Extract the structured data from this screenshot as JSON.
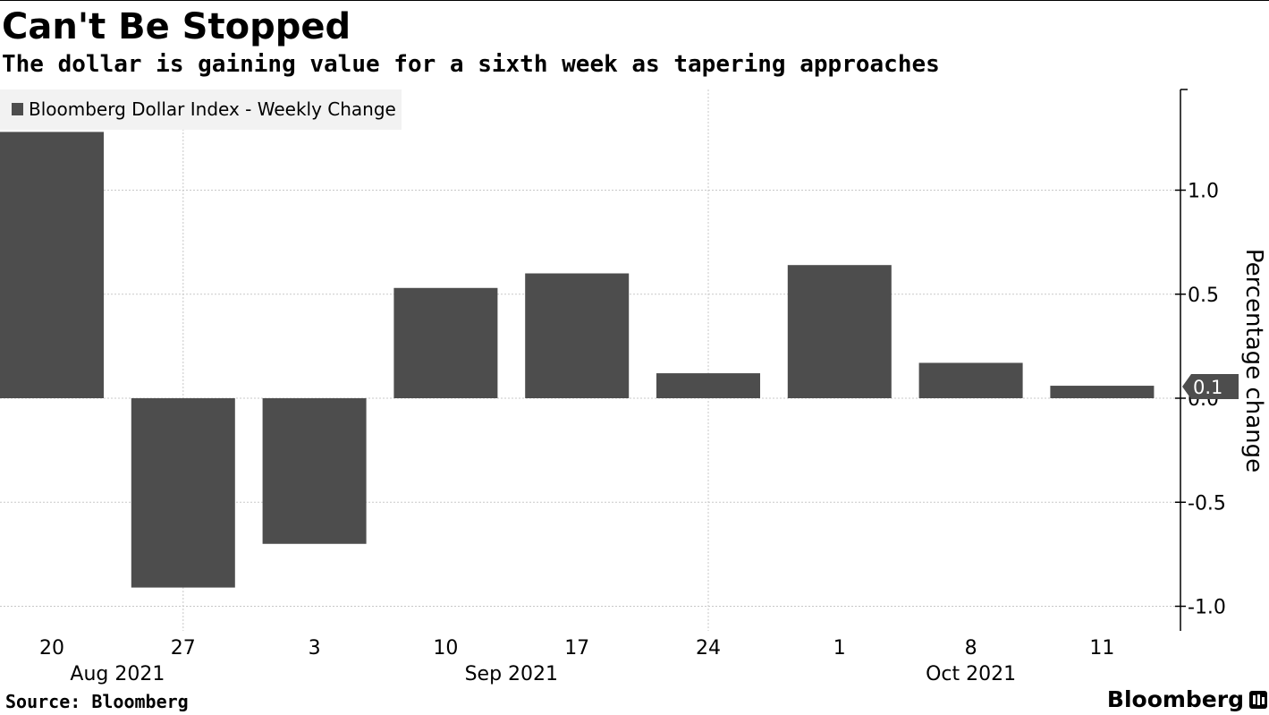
{
  "header": {
    "title": "Can't Be Stopped",
    "subtitle": "The dollar is gaining value for a sixth week as tapering approaches"
  },
  "footer": {
    "source": "Source: Bloomberg",
    "brand": "Bloomberg"
  },
  "colors": {
    "bar": "#4d4d4d",
    "grid": "#c8c8c8",
    "axis": "#000000",
    "legend_bg": "#f2f2f2",
    "flag": "#4d4d4d",
    "flag_text": "#ffffff"
  },
  "chart_data": {
    "type": "bar",
    "title": "Can't Be Stopped",
    "subtitle": "The dollar is gaining value for a sixth week as tapering approaches",
    "series": [
      {
        "name": "Bloomberg Dollar Index - Weekly Change",
        "values": [
          1.28,
          -0.91,
          -0.7,
          0.53,
          0.6,
          0.12,
          0.64,
          0.17,
          0.06
        ]
      }
    ],
    "categories": [
      "20",
      "27",
      "3",
      "10",
      "17",
      "24",
      "1",
      "8",
      "11"
    ],
    "month_labels": [
      {
        "text": "Aug 2021",
        "from": 0,
        "to": 1
      },
      {
        "text": "Sep 2021",
        "from": 2,
        "to": 5
      },
      {
        "text": "Oct 2021",
        "from": 6,
        "to": 8
      }
    ],
    "ylabel": "Percentage change",
    "xlabel": "",
    "ylim": [
      -1.1,
      1.5
    ],
    "yticks": [
      1.0,
      0.5,
      0.0,
      -0.5,
      -1.0
    ],
    "ytick_labels": [
      "1.0",
      "0.5",
      "0.0",
      "-0.5",
      "-1.0"
    ],
    "last_value_label": "0.1",
    "legend_position": "top-left",
    "y_axis_side": "right",
    "grid": true
  }
}
